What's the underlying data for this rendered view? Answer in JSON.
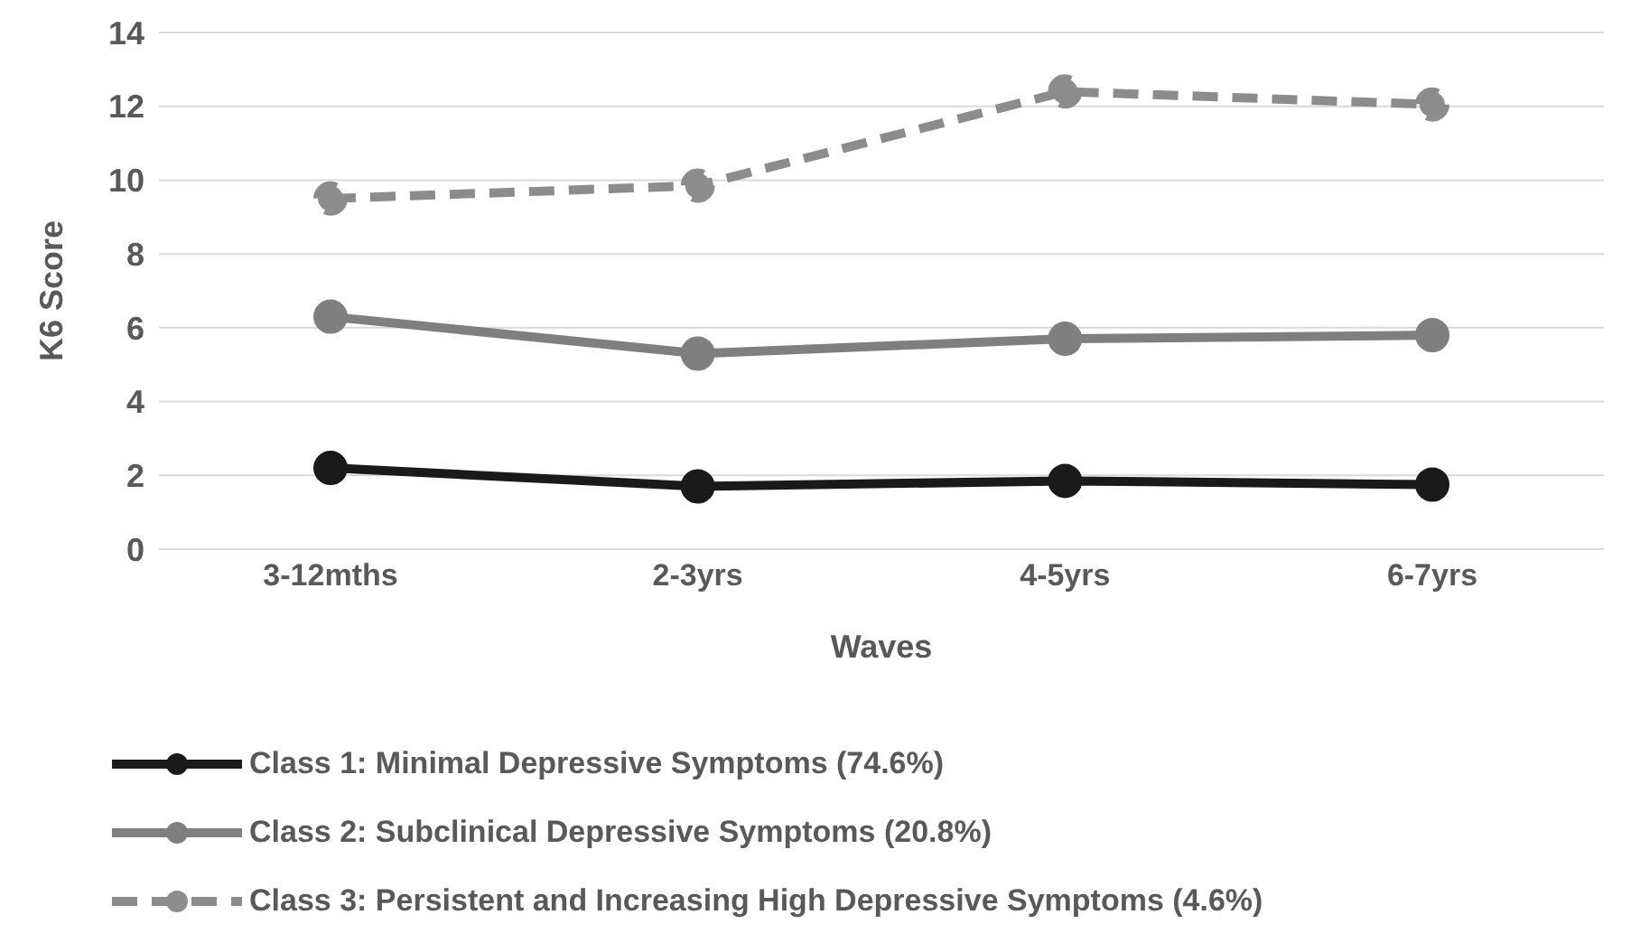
{
  "chart_data": {
    "type": "line",
    "xlabel": "Waves",
    "ylabel": "K6 Score",
    "categories": [
      "3-12mths",
      "2-3yrs",
      "4-5yrs",
      "6-7yrs"
    ],
    "series": [
      {
        "name": "Class 1: Minimal Depressive Symptoms (74.6%)",
        "color": "#1a1a1a",
        "values": [
          2.2,
          1.7,
          1.85,
          1.75
        ],
        "line_style": "solid"
      },
      {
        "name": "Class 2: Subclinical Depressive Symptoms (20.8%)",
        "color": "#7f7f7f",
        "values": [
          6.3,
          5.3,
          5.7,
          5.8
        ],
        "line_style": "solid"
      },
      {
        "name": "Class 3: Persistent and Increasing High Depressive Symptoms (4.6%)",
        "color": "#8c8c8c",
        "values": [
          9.5,
          9.85,
          12.4,
          12.05
        ],
        "line_style": "dashed"
      }
    ],
    "ylim": [
      0,
      14
    ],
    "yticks": [
      0,
      2,
      4,
      6,
      8,
      10,
      12,
      14
    ],
    "grid": "y",
    "legend": "bottom",
    "marker": "circle"
  }
}
